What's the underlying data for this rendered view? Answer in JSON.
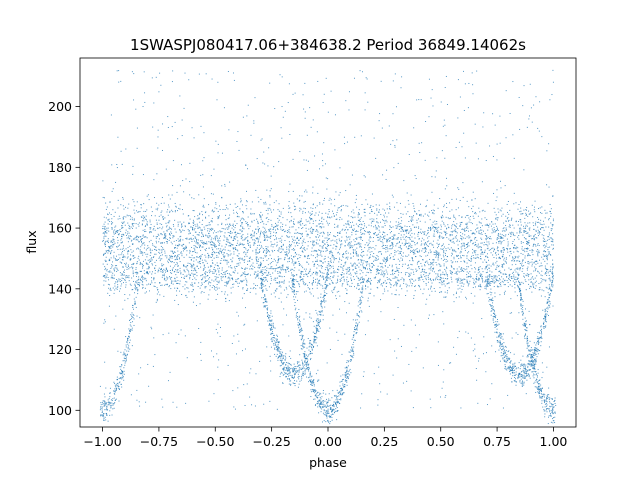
{
  "chart_data": {
    "type": "scatter",
    "title": "1SWASPJ080417.06+384638.2 Period 36849.14062s",
    "xlabel": "phase",
    "ylabel": "flux",
    "xlim": [
      -1.1,
      1.1
    ],
    "ylim": [
      94.5,
      216
    ],
    "xticks": [
      -1.0,
      -0.75,
      -0.5,
      -0.25,
      0.0,
      0.25,
      0.5,
      0.75,
      1.0
    ],
    "xtick_labels": [
      "−1.00",
      "−0.75",
      "−0.50",
      "−0.25",
      "0.00",
      "0.25",
      "0.50",
      "0.75",
      "1.00"
    ],
    "yticks": [
      100,
      120,
      140,
      160,
      180,
      200
    ],
    "ytick_labels": [
      "100",
      "120",
      "140",
      "160",
      "180",
      "200"
    ],
    "grid": false,
    "legend": "none",
    "marker_color": "#1f77b4",
    "series": [
      {
        "bands": [
          {
            "flux_center": 157,
            "flux_spread": 6
          },
          {
            "flux_center": 149,
            "flux_spread": 2.5
          },
          {
            "flux_center": 143,
            "flux_spread": 2.5
          }
        ],
        "dips": [
          {
            "phase_center": -0.15,
            "phase_halfwidth": 0.15,
            "flux_min": 112
          },
          {
            "phase_center": 0.85,
            "phase_halfwidth": 0.15,
            "flux_min": 112
          },
          {
            "phase_center": 0.0,
            "phase_halfwidth": 0.16,
            "flux_min": 100
          },
          {
            "phase_center": -1.0,
            "phase_halfwidth": 0.16,
            "flux_min": 100
          },
          {
            "phase_center": 1.0,
            "phase_halfwidth": 0.16,
            "flux_min": 100
          }
        ],
        "outlier_range": [
          100,
          212
        ]
      }
    ]
  }
}
